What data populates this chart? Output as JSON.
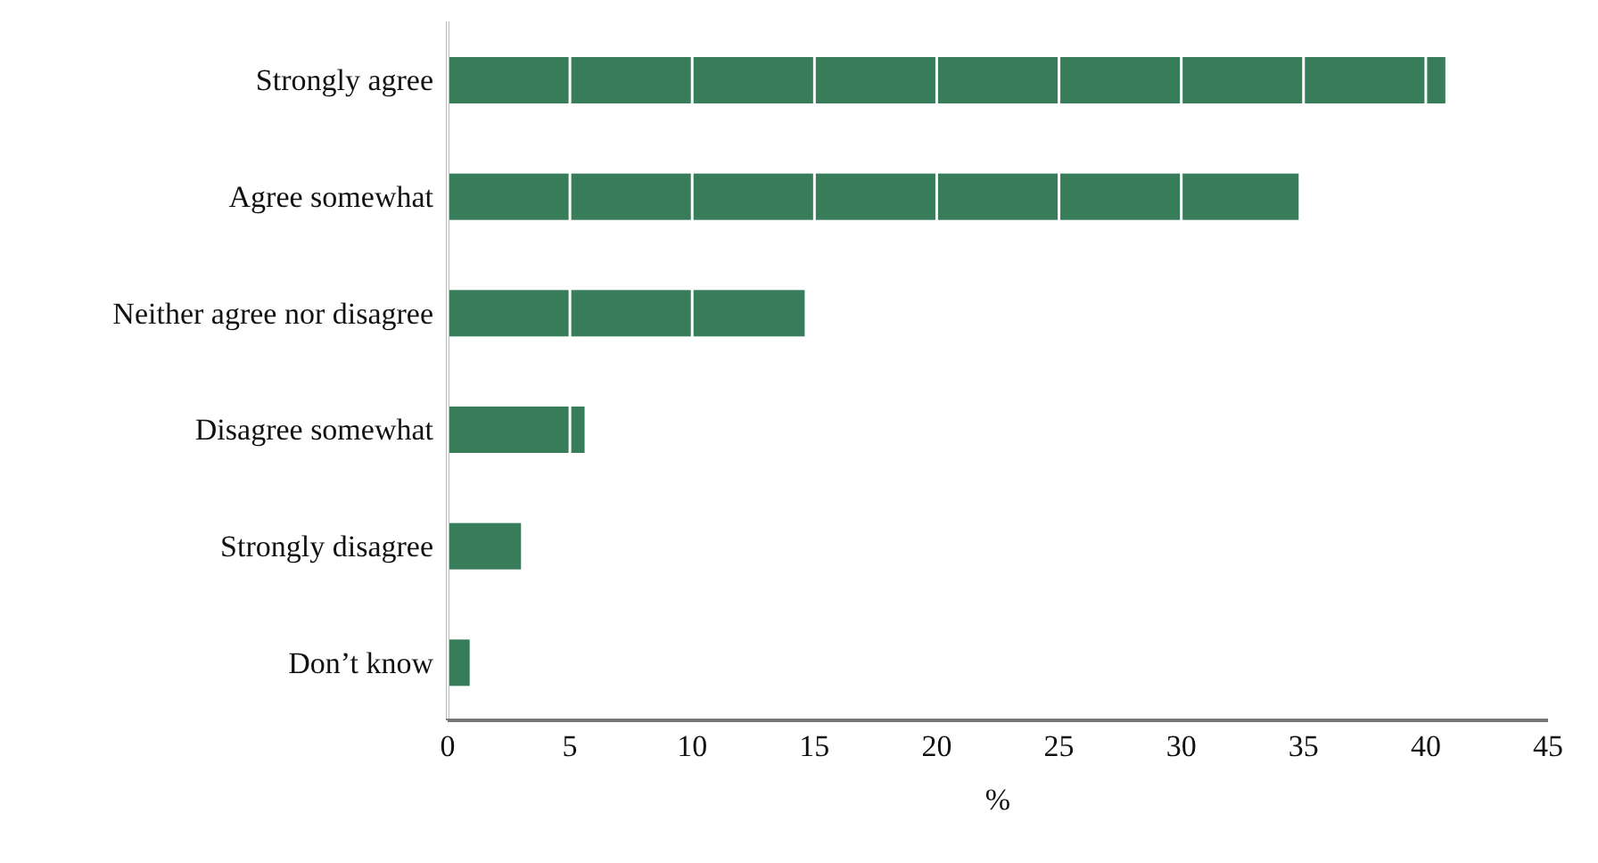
{
  "chart_data": {
    "type": "bar",
    "orientation": "horizontal",
    "xlabel": "%",
    "categories": [
      "Strongly agree",
      "Agree somewhat",
      "Neither agree nor disagree",
      "Disagree somewhat",
      "Strongly disagree",
      "Don’t know"
    ],
    "values": [
      40.8,
      34.8,
      14.6,
      5.6,
      3.0,
      0.9
    ],
    "color": "#377d5a",
    "xlim": [
      0,
      45
    ],
    "xticks": [
      0,
      5,
      10,
      15,
      20,
      25,
      30,
      35,
      40,
      45
    ],
    "grid": "x"
  }
}
